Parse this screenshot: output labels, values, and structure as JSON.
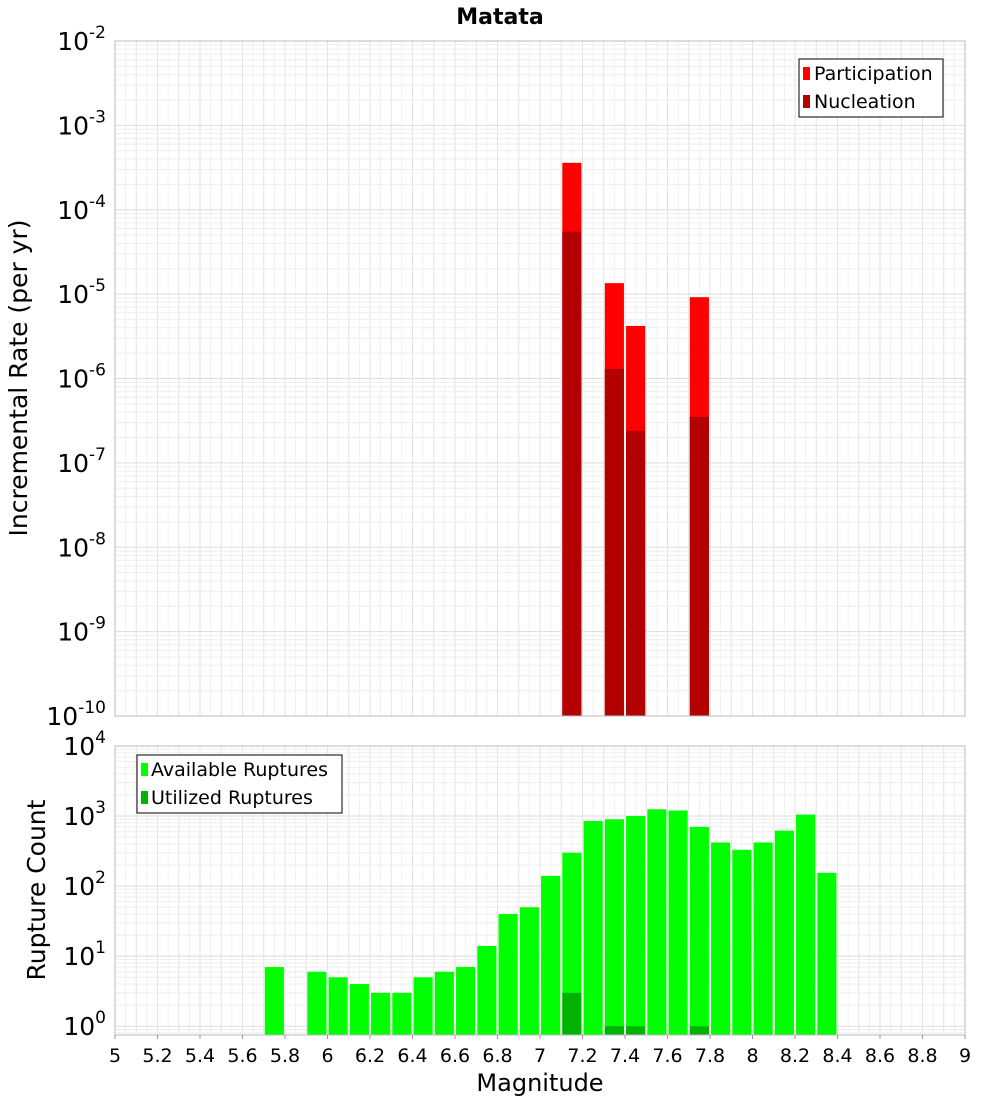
{
  "chart_data": [
    {
      "type": "bar",
      "title": "Matata",
      "xlabel": "",
      "ylabel": "Incremental Rate (per yr)",
      "yscale": "log",
      "ylim": [
        1e-10,
        0.01
      ],
      "xlim": [
        5,
        9
      ],
      "y_tick_exponents": [
        -10,
        -9,
        -8,
        -7,
        -6,
        -5,
        -4,
        -3,
        -2
      ],
      "y_tick_base": "10",
      "bar_width": 0.09,
      "grid": true,
      "legend_position": "top-right",
      "x": [
        7.15,
        7.35,
        7.45,
        7.75
      ],
      "series": [
        {
          "name": "Participation",
          "color": "#ff0000",
          "values": [
            0.00036,
            1.35e-05,
            4.2e-06,
            9.2e-06
          ]
        },
        {
          "name": "Nucleation",
          "color": "#b30000",
          "values": [
            5.5e-05,
            1.3e-06,
            2.4e-07,
            3.5e-07
          ]
        }
      ]
    },
    {
      "type": "bar",
      "title": "",
      "xlabel": "Magnitude",
      "ylabel": "Rupture Count",
      "yscale": "log",
      "ylim": [
        0.75,
        10000
      ],
      "xlim": [
        5,
        9
      ],
      "y_tick_exponents": [
        0,
        1,
        2,
        3,
        4
      ],
      "y_tick_base": "10",
      "x_ticks": [
        "5",
        "5.2",
        "5.4",
        "5.6",
        "5.8",
        "6",
        "6.2",
        "6.4",
        "6.6",
        "6.8",
        "7",
        "7.2",
        "7.4",
        "7.6",
        "7.8",
        "8",
        "8.2",
        "8.4",
        "8.6",
        "8.8",
        "9"
      ],
      "bar_width": 0.09,
      "grid": true,
      "legend_position": "top-left",
      "series": [
        {
          "name": "Available Ruptures",
          "color": "#00ff00",
          "x": [
            5.75,
            5.95,
            6.05,
            6.15,
            6.25,
            6.35,
            6.45,
            6.55,
            6.65,
            6.75,
            6.85,
            6.95,
            7.05,
            7.15,
            7.25,
            7.35,
            7.45,
            7.55,
            7.65,
            7.75,
            7.85,
            7.95,
            8.05,
            8.15,
            8.25,
            8.35
          ],
          "values": [
            7,
            6,
            5,
            4,
            3,
            3,
            5,
            6,
            7,
            14,
            40,
            50,
            140,
            300,
            850,
            900,
            1000,
            1250,
            1200,
            700,
            420,
            330,
            420,
            620,
            1050,
            155
          ]
        },
        {
          "name": "Utilized Ruptures",
          "color": "#00b300",
          "x": [
            7.15,
            7.35,
            7.45,
            7.75
          ],
          "values": [
            3,
            1,
            1,
            1
          ]
        }
      ]
    }
  ]
}
